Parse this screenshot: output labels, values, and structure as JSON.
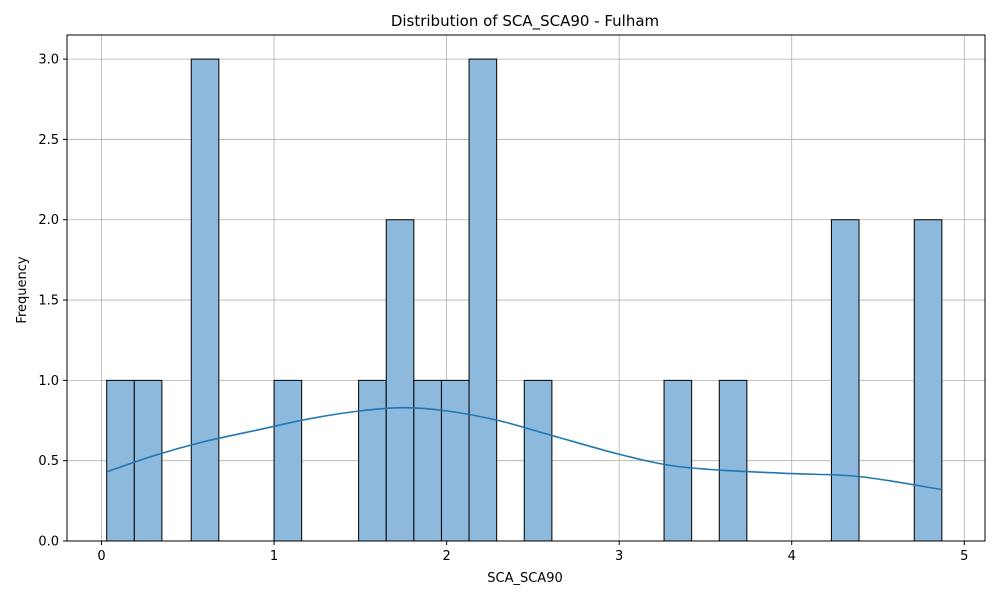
{
  "chart_data": {
    "type": "bar",
    "subtype": "histogram",
    "title": "Distribution of SCA_SCA90 - Fulham",
    "xlabel": "SCA_SCA90",
    "ylabel": "Frequency",
    "xlim": [
      -0.2,
      5.12
    ],
    "ylim": [
      0.0,
      3.15
    ],
    "xticks": [
      0,
      1,
      2,
      3,
      4,
      5
    ],
    "yticks": [
      0.0,
      0.5,
      1.0,
      1.5,
      2.0,
      2.5,
      3.0
    ],
    "xtick_labels": [
      "0",
      "1",
      "2",
      "3",
      "4",
      "5"
    ],
    "ytick_labels": [
      "0.0",
      "0.5",
      "1.0",
      "1.5",
      "2.0",
      "2.5",
      "3.0"
    ],
    "grid": true,
    "bar_color": "#8db9dc",
    "edge_color": "#000000",
    "bins": [
      {
        "start": 0.03,
        "end": 0.19,
        "count": 1
      },
      {
        "start": 0.19,
        "end": 0.35,
        "count": 1
      },
      {
        "start": 0.52,
        "end": 0.68,
        "count": 3
      },
      {
        "start": 1.0,
        "end": 1.16,
        "count": 1
      },
      {
        "start": 1.49,
        "end": 1.65,
        "count": 1
      },
      {
        "start": 1.65,
        "end": 1.81,
        "count": 2
      },
      {
        "start": 1.81,
        "end": 1.97,
        "count": 1
      },
      {
        "start": 1.97,
        "end": 2.13,
        "count": 1
      },
      {
        "start": 2.13,
        "end": 2.29,
        "count": 3
      },
      {
        "start": 2.45,
        "end": 2.61,
        "count": 1
      },
      {
        "start": 3.26,
        "end": 3.42,
        "count": 1
      },
      {
        "start": 3.58,
        "end": 3.74,
        "count": 1
      },
      {
        "start": 4.23,
        "end": 4.39,
        "count": 2
      },
      {
        "start": 4.71,
        "end": 4.87,
        "count": 2
      }
    ],
    "kde": {
      "color": "#1f77b4",
      "x": [
        0.03,
        0.3,
        0.6,
        0.9,
        1.2,
        1.5,
        1.75,
        2.0,
        2.3,
        2.6,
        3.0,
        3.3,
        3.6,
        4.0,
        4.4,
        4.87
      ],
      "y": [
        0.43,
        0.53,
        0.62,
        0.69,
        0.76,
        0.81,
        0.83,
        0.81,
        0.75,
        0.66,
        0.54,
        0.47,
        0.44,
        0.42,
        0.4,
        0.32
      ]
    }
  }
}
